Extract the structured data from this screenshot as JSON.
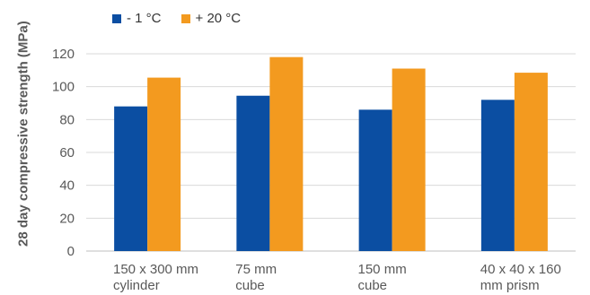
{
  "chart_data": {
    "type": "bar",
    "categories": [
      [
        "150 x 300 mm",
        "cylinder"
      ],
      [
        "75 mm",
        "cube"
      ],
      [
        "150 mm",
        "cube"
      ],
      [
        "40 x 40 x 160",
        "mm prism"
      ]
    ],
    "series": [
      {
        "name": "- 1 °C",
        "color": "#0B4EA2",
        "values": [
          88,
          94.5,
          86,
          92
        ]
      },
      {
        "name": "+ 20 °C",
        "color": "#F39A1F",
        "values": [
          105.5,
          118,
          111,
          108.5
        ]
      }
    ],
    "ylabel": "28 day compressive strength (MPa)",
    "ylim": [
      0,
      120
    ],
    "yticks": [
      0,
      20,
      40,
      60,
      80,
      100,
      120
    ],
    "grid": true,
    "legend": "top-left"
  }
}
